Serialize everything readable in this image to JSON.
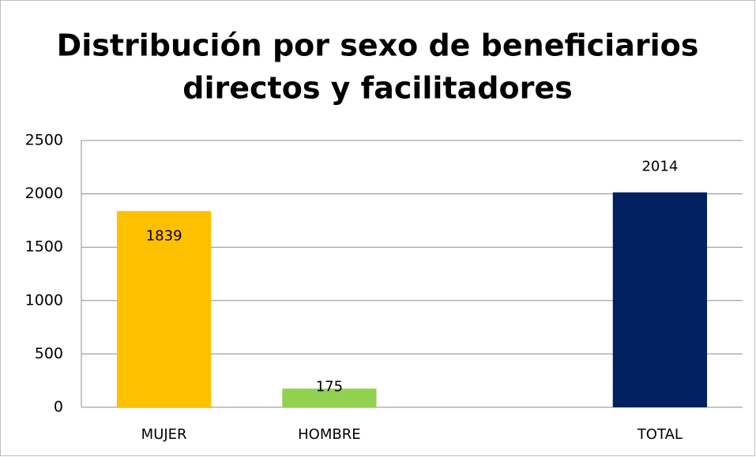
{
  "chart_data": {
    "type": "bar",
    "title": [
      "Distribución por sexo de beneficiarios",
      "directos y facilitadores"
    ],
    "categories": [
      "MUJER",
      "HOMBRE",
      null,
      "TOTAL"
    ],
    "values": [
      1839,
      175,
      null,
      2014
    ],
    "colors": [
      "#ffc000",
      "#92d050",
      null,
      "#002060"
    ],
    "ylim": [
      0,
      2500
    ],
    "yticks": [
      0,
      500,
      1000,
      1500,
      2000,
      2500
    ],
    "grid": true
  }
}
